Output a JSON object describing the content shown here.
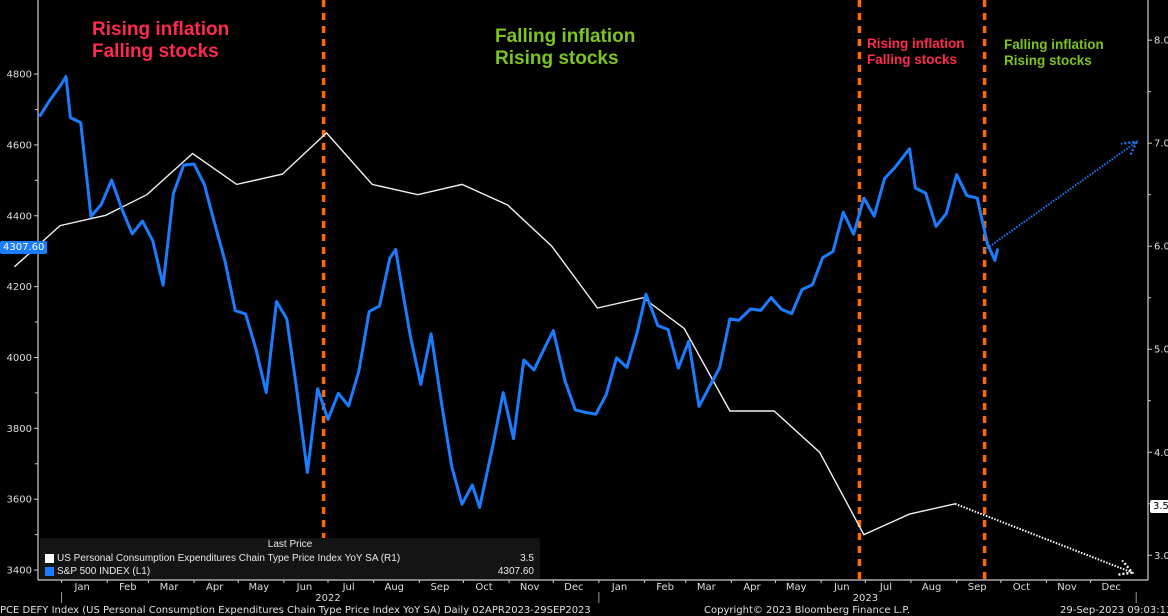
{
  "colors": {
    "spx": "#1a7cff",
    "pce": "#f0f0f0",
    "divider": "#ff6a00",
    "red_text": "#ff2a4d",
    "green_text": "#7cc41e",
    "background": "#000000"
  },
  "annotations": [
    {
      "line1": "Rising inflation",
      "line2": "Falling stocks",
      "tone": "red"
    },
    {
      "line1": "Falling inflation",
      "line2": "Rising stocks",
      "tone": "green"
    },
    {
      "line1": "Rising inflation",
      "line2": "Falling stocks",
      "tone": "red"
    },
    {
      "line1": "Falling inflation",
      "line2": "Rising stocks",
      "tone": "green"
    }
  ],
  "legend": {
    "header": "Last Price",
    "items": [
      {
        "name": "US Personal Consumption Expenditures Chain Type Price Index YoY SA  (R1)",
        "value": "3.5",
        "color": "#ffffff"
      },
      {
        "name": "S&P 500 INDEX  (L1)",
        "value": "4307.60",
        "color": "#1a7cff"
      }
    ]
  },
  "badges": {
    "left": "4307.60",
    "right": "3.5"
  },
  "footer": {
    "left": "PCE DEFY Index (US Personal Consumption Expenditures Chain Type Price Index YoY SA)  Daily 02APR2023-29SEP2023",
    "center": "Copyright© 2023 Bloomberg Finance L.P.",
    "right": "29-Sep-2023 09:03:13"
  },
  "chart_data": {
    "type": "line",
    "x_range": [
      "2021-12-16",
      "2024-01-09"
    ],
    "x_ticks": {
      "months": [
        "Jan",
        "Feb",
        "Mar",
        "Apr",
        "May",
        "Jun",
        "Jul",
        "Aug",
        "Sep",
        "Oct",
        "Nov",
        "Dec"
      ],
      "years": [
        "2022",
        "2023"
      ]
    },
    "y_left": {
      "ticks": [
        3400,
        3600,
        3800,
        4000,
        4200,
        4400,
        4600,
        4800
      ],
      "range": [
        3372,
        5009
      ]
    },
    "y_right": {
      "ticks": [
        "3.0",
        "4.0",
        "5.0",
        "6.0",
        "7.0",
        "8.0"
      ],
      "range": [
        2.76,
        8.39
      ]
    },
    "grid": false,
    "legend_placement": "bottom-left",
    "vertical_markers": [
      "2022-06-28",
      "2023-06-27",
      "2023-09-20"
    ],
    "series": [
      {
        "name": "S&P 500 INDEX (L1)",
        "axis": "left",
        "last": 4307.6,
        "points": [
          [
            "2021-12-17",
            4680
          ],
          [
            "2021-12-24",
            4726
          ],
          [
            "2021-12-31",
            4766
          ],
          [
            "2022-01-04",
            4793
          ],
          [
            "2022-01-07",
            4677
          ],
          [
            "2022-01-14",
            4663
          ],
          [
            "2022-01-21",
            4398
          ],
          [
            "2022-01-28",
            4432
          ],
          [
            "2022-02-04",
            4501
          ],
          [
            "2022-02-11",
            4419
          ],
          [
            "2022-02-18",
            4349
          ],
          [
            "2022-02-25",
            4385
          ],
          [
            "2022-03-04",
            4329
          ],
          [
            "2022-03-11",
            4204
          ],
          [
            "2022-03-18",
            4463
          ],
          [
            "2022-03-25",
            4543
          ],
          [
            "2022-04-01",
            4546
          ],
          [
            "2022-04-08",
            4488
          ],
          [
            "2022-04-14",
            4393
          ],
          [
            "2022-04-22",
            4272
          ],
          [
            "2022-04-29",
            4132
          ],
          [
            "2022-05-06",
            4123
          ],
          [
            "2022-05-13",
            4024
          ],
          [
            "2022-05-20",
            3901
          ],
          [
            "2022-05-27",
            4158
          ],
          [
            "2022-06-03",
            4109
          ],
          [
            "2022-06-10",
            3901
          ],
          [
            "2022-06-17",
            3675
          ],
          [
            "2022-06-24",
            3912
          ],
          [
            "2022-07-01",
            3825
          ],
          [
            "2022-07-08",
            3899
          ],
          [
            "2022-07-15",
            3863
          ],
          [
            "2022-07-22",
            3962
          ],
          [
            "2022-07-29",
            4130
          ],
          [
            "2022-08-05",
            4145
          ],
          [
            "2022-08-12",
            4280
          ],
          [
            "2022-08-16",
            4305
          ],
          [
            "2022-08-19",
            4228
          ],
          [
            "2022-08-26",
            4058
          ],
          [
            "2022-09-02",
            3924
          ],
          [
            "2022-09-09",
            4067
          ],
          [
            "2022-09-16",
            3873
          ],
          [
            "2022-09-23",
            3693
          ],
          [
            "2022-09-30",
            3586
          ],
          [
            "2022-10-07",
            3640
          ],
          [
            "2022-10-12",
            3577
          ],
          [
            "2022-10-21",
            3752
          ],
          [
            "2022-10-28",
            3901
          ],
          [
            "2022-11-04",
            3771
          ],
          [
            "2022-11-11",
            3993
          ],
          [
            "2022-11-18",
            3965
          ],
          [
            "2022-11-25",
            4026
          ],
          [
            "2022-12-01",
            4076
          ],
          [
            "2022-12-09",
            3934
          ],
          [
            "2022-12-16",
            3852
          ],
          [
            "2022-12-23",
            3845
          ],
          [
            "2022-12-30",
            3840
          ],
          [
            "2023-01-06",
            3895
          ],
          [
            "2023-01-13",
            3999
          ],
          [
            "2023-01-20",
            3972
          ],
          [
            "2023-01-27",
            4071
          ],
          [
            "2023-02-02",
            4179
          ],
          [
            "2023-02-10",
            4090
          ],
          [
            "2023-02-17",
            4079
          ],
          [
            "2023-02-24",
            3970
          ],
          [
            "2023-03-03",
            4046
          ],
          [
            "2023-03-10",
            3862
          ],
          [
            "2023-03-17",
            3917
          ],
          [
            "2023-03-24",
            3971
          ],
          [
            "2023-03-31",
            4109
          ],
          [
            "2023-04-06",
            4105
          ],
          [
            "2023-04-14",
            4137
          ],
          [
            "2023-04-21",
            4133
          ],
          [
            "2023-04-28",
            4169
          ],
          [
            "2023-05-05",
            4136
          ],
          [
            "2023-05-12",
            4124
          ],
          [
            "2023-05-19",
            4192
          ],
          [
            "2023-05-26",
            4205
          ],
          [
            "2023-06-02",
            4282
          ],
          [
            "2023-06-09",
            4299
          ],
          [
            "2023-06-16",
            4410
          ],
          [
            "2023-06-23",
            4348
          ],
          [
            "2023-06-30",
            4450
          ],
          [
            "2023-07-07",
            4399
          ],
          [
            "2023-07-14",
            4505
          ],
          [
            "2023-07-21",
            4536
          ],
          [
            "2023-07-31",
            4589
          ],
          [
            "2023-08-04",
            4478
          ],
          [
            "2023-08-11",
            4464
          ],
          [
            "2023-08-18",
            4370
          ],
          [
            "2023-08-25",
            4406
          ],
          [
            "2023-09-01",
            4516
          ],
          [
            "2023-09-08",
            4457
          ],
          [
            "2023-09-15",
            4450
          ],
          [
            "2023-09-22",
            4320
          ],
          [
            "2023-09-27",
            4274
          ],
          [
            "2023-09-29",
            4307.6
          ]
        ],
        "forecast": [
          [
            "2023-09-20",
            4303
          ],
          [
            "2023-12-31",
            4605
          ]
        ]
      },
      {
        "name": "US Personal Consumption Expenditures Chain Type Price Index YoY SA (R1)",
        "axis": "right",
        "last": 3.5,
        "points": [
          [
            "2021-11-30",
            5.8
          ],
          [
            "2021-12-31",
            6.2
          ],
          [
            "2022-01-31",
            6.3
          ],
          [
            "2022-02-28",
            6.5
          ],
          [
            "2022-03-31",
            6.9
          ],
          [
            "2022-04-30",
            6.6
          ],
          [
            "2022-05-31",
            6.7
          ],
          [
            "2022-06-30",
            7.1
          ],
          [
            "2022-07-31",
            6.6
          ],
          [
            "2022-08-31",
            6.5
          ],
          [
            "2022-09-30",
            6.6
          ],
          [
            "2022-10-31",
            6.4
          ],
          [
            "2022-11-30",
            6.0
          ],
          [
            "2022-12-31",
            5.4
          ],
          [
            "2023-01-31",
            5.5
          ],
          [
            "2023-02-28",
            5.2
          ],
          [
            "2023-03-31",
            4.4
          ],
          [
            "2023-04-30",
            4.4
          ],
          [
            "2023-05-31",
            4.0
          ],
          [
            "2023-06-30",
            3.2
          ],
          [
            "2023-07-31",
            3.4
          ],
          [
            "2023-08-31",
            3.5
          ]
        ],
        "forecast": [
          [
            "2023-08-31",
            3.5
          ],
          [
            "2023-12-28",
            2.84
          ]
        ]
      }
    ]
  }
}
